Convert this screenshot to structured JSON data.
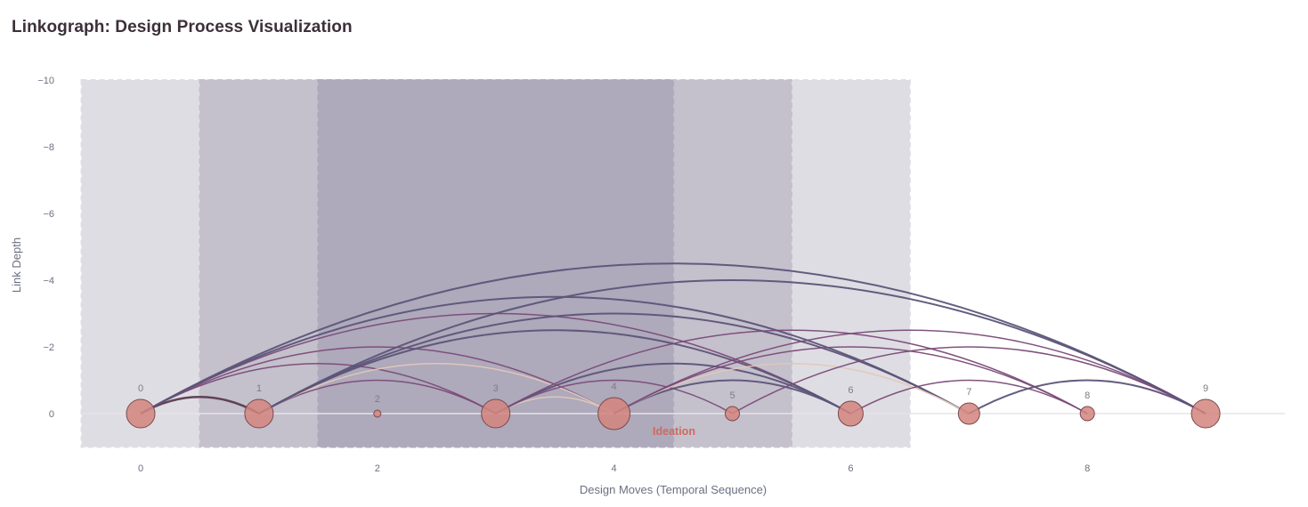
{
  "title": "Linkograph: Design Process Visualization",
  "chart_data": {
    "type": "linkograph",
    "xlabel": "Design Moves (Temporal Sequence)",
    "ylabel": "Link Depth",
    "xlim": [
      -0.5,
      9.65
    ],
    "ylim": [
      -10,
      1
    ],
    "y_reversed": true,
    "x_ticks": [
      0,
      2,
      4,
      6,
      8
    ],
    "y_ticks": [
      0,
      -2,
      -4,
      -6,
      -8,
      -10
    ],
    "moves": [
      {
        "id": 0,
        "label": "0",
        "size": 16
      },
      {
        "id": 1,
        "label": "1",
        "size": 16
      },
      {
        "id": 2,
        "label": "2",
        "size": 4
      },
      {
        "id": 3,
        "label": "3",
        "size": 16
      },
      {
        "id": 4,
        "label": "4",
        "size": 18
      },
      {
        "id": 5,
        "label": "5",
        "size": 8
      },
      {
        "id": 6,
        "label": "6",
        "size": 14
      },
      {
        "id": 7,
        "label": "7",
        "size": 12
      },
      {
        "id": 8,
        "label": "8",
        "size": 8
      },
      {
        "id": 9,
        "label": "9",
        "size": 16
      }
    ],
    "links": [
      {
        "source": 0,
        "target": 1,
        "color": "#5a3a4e",
        "width": 2.5
      },
      {
        "source": 0,
        "target": 3,
        "color": "#7a4a78",
        "width": 1.5
      },
      {
        "source": 0,
        "target": 4,
        "color": "#7a4a78",
        "width": 1.5
      },
      {
        "source": 0,
        "target": 6,
        "color": "#7a4a78",
        "width": 1.5
      },
      {
        "source": 0,
        "target": 7,
        "color": "#5c5478",
        "width": 2
      },
      {
        "source": 0,
        "target": 9,
        "color": "#5c5478",
        "width": 2
      },
      {
        "source": 1,
        "target": 3,
        "color": "#7a4a78",
        "width": 1.5
      },
      {
        "source": 1,
        "target": 4,
        "color": "#e0c8b8",
        "width": 1.5
      },
      {
        "source": 1,
        "target": 6,
        "color": "#5c5478",
        "width": 2
      },
      {
        "source": 1,
        "target": 7,
        "color": "#5c5478",
        "width": 2
      },
      {
        "source": 1,
        "target": 9,
        "color": "#5c5478",
        "width": 2
      },
      {
        "source": 3,
        "target": 4,
        "color": "#e0c8b8",
        "width": 1.5
      },
      {
        "source": 3,
        "target": 5,
        "color": "#7a4a78",
        "width": 1.5
      },
      {
        "source": 3,
        "target": 6,
        "color": "#5c5478",
        "width": 2
      },
      {
        "source": 3,
        "target": 8,
        "color": "#7a4a78",
        "width": 1.5
      },
      {
        "source": 4,
        "target": 6,
        "color": "#5c5478",
        "width": 2
      },
      {
        "source": 4,
        "target": 7,
        "color": "#e0c8b8",
        "width": 1.5
      },
      {
        "source": 4,
        "target": 8,
        "color": "#7a4a78",
        "width": 1.5
      },
      {
        "source": 4,
        "target": 9,
        "color": "#7a4a78",
        "width": 1.5
      },
      {
        "source": 5,
        "target": 9,
        "color": "#7a4a78",
        "width": 1.5
      },
      {
        "source": 6,
        "target": 8,
        "color": "#7a4a78",
        "width": 1.5
      },
      {
        "source": 7,
        "target": 9,
        "color": "#5c5478",
        "width": 2
      }
    ],
    "phases": [
      {
        "x0": -0.5,
        "x1": 6.5,
        "color": "#dedde3"
      },
      {
        "x0": 0.5,
        "x1": 5.5,
        "color": "#c4c0cc"
      },
      {
        "x0": 1.5,
        "x1": 4.5,
        "color": "#aea9bb"
      }
    ],
    "phase_label": {
      "text": "Ideation",
      "color": "#d06a5e"
    },
    "node_color": "#d4857e",
    "node_edge_color": "#7a4a4e"
  }
}
